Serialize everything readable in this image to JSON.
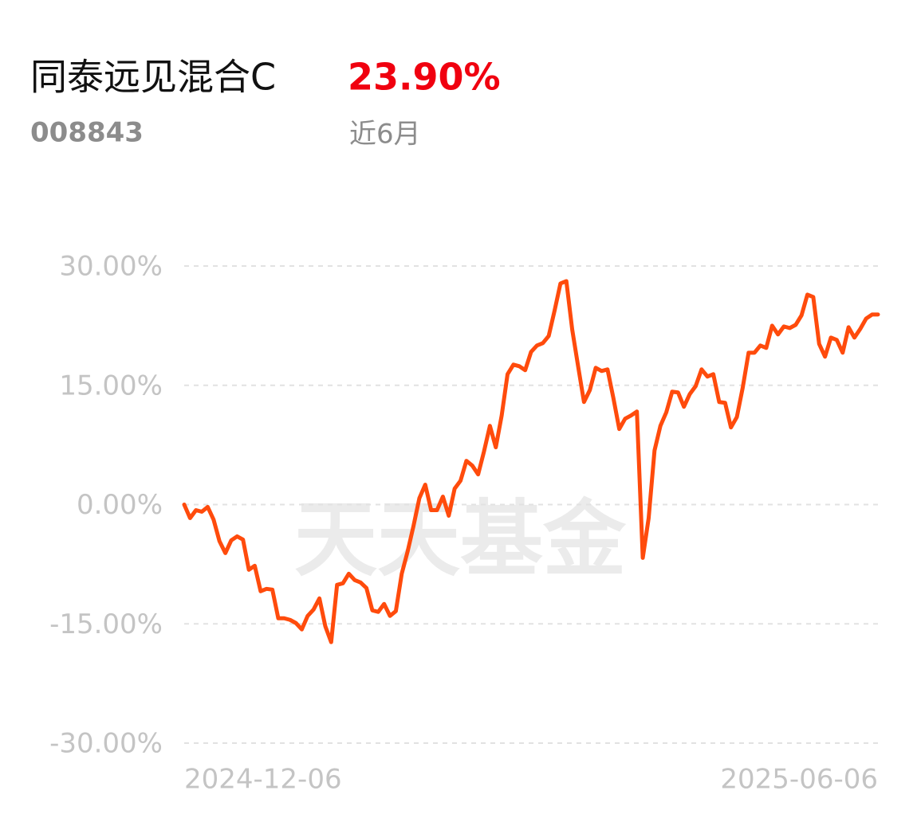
{
  "chart_data": {
    "type": "line",
    "title": "同泰远见混合C",
    "code": "008843",
    "return": "23.90%",
    "period": "近6月",
    "watermark": "天天基金",
    "color": "#ff4b0c",
    "grid": true,
    "ylim": [
      -30,
      30
    ],
    "yticks": [
      {
        "value": 30,
        "label": "30.00%"
      },
      {
        "value": 15,
        "label": "15.00%"
      },
      {
        "value": 0,
        "label": "0.00%"
      },
      {
        "value": -15,
        "label": "-15.00%"
      },
      {
        "value": -30,
        "label": "-30.00%"
      }
    ],
    "categories": [
      "2024-12-06",
      null,
      null,
      null,
      null,
      null,
      null,
      null,
      null,
      null,
      null,
      null,
      null,
      null,
      null,
      null,
      null,
      null,
      null,
      null,
      null,
      null,
      null,
      null,
      null,
      null,
      null,
      null,
      null,
      null,
      null,
      null,
      null,
      null,
      null,
      null,
      null,
      null,
      null,
      null,
      null,
      null,
      null,
      null,
      null,
      null,
      null,
      null,
      null,
      null,
      null,
      null,
      null,
      null,
      null,
      null,
      null,
      null,
      null,
      null,
      null,
      null,
      null,
      null,
      null,
      null,
      null,
      null,
      null,
      null,
      null,
      null,
      null,
      null,
      null,
      null,
      null,
      null,
      null,
      null,
      null,
      null,
      null,
      null,
      null,
      null,
      null,
      null,
      null,
      null,
      null,
      null,
      null,
      null,
      null,
      null,
      null,
      null,
      null,
      null,
      null,
      null,
      null,
      null,
      null,
      null,
      null,
      null,
      null,
      null,
      null,
      null,
      null,
      null,
      null,
      null,
      null,
      null,
      "2025-06-06"
    ],
    "values": [
      0,
      -1.7,
      -0.7,
      -0.9,
      -0.3,
      -1.9,
      -4.6,
      -6.1,
      -4.5,
      -4.0,
      -4.4,
      -8.2,
      -7.7,
      -10.9,
      -10.6,
      -10.7,
      -14.3,
      -14.3,
      -14.5,
      -14.9,
      -15.7,
      -14.0,
      -13.2,
      -11.8,
      -15.3,
      -17.3,
      -10.1,
      -9.9,
      -8.7,
      -9.5,
      -9.8,
      -10.5,
      -13.3,
      -13.5,
      -12.5,
      -14.0,
      -13.4,
      -8.7,
      -5.9,
      -2.7,
      0.8,
      2.5,
      -0.7,
      -0.7,
      1.0,
      -1.4,
      2.0,
      3.0,
      5.5,
      4.9,
      3.8,
      6.7,
      9.9,
      7.2,
      11.2,
      16.4,
      17.6,
      17.4,
      16.9,
      19.2,
      20.0,
      20.3,
      21.2,
      24.4,
      27.8,
      28.1,
      22.0,
      17.4,
      12.9,
      14.4,
      17.2,
      16.8,
      17.0,
      13.4,
      9.5,
      10.8,
      11.2,
      11.7,
      -6.7,
      -1.7,
      6.8,
      9.9,
      11.6,
      14.2,
      14.1,
      12.3,
      13.9,
      14.9,
      17.0,
      16.1,
      16.4,
      12.9,
      12.8,
      9.7,
      11.0,
      14.7,
      19.1,
      19.1,
      20.0,
      19.7,
      22.5,
      21.4,
      22.4,
      22.2,
      22.6,
      23.8,
      26.4,
      26.1,
      20.2,
      18.6,
      21.0,
      20.7,
      19.1,
      22.3,
      21.0,
      22.1,
      23.4,
      23.9,
      23.9
    ]
  }
}
